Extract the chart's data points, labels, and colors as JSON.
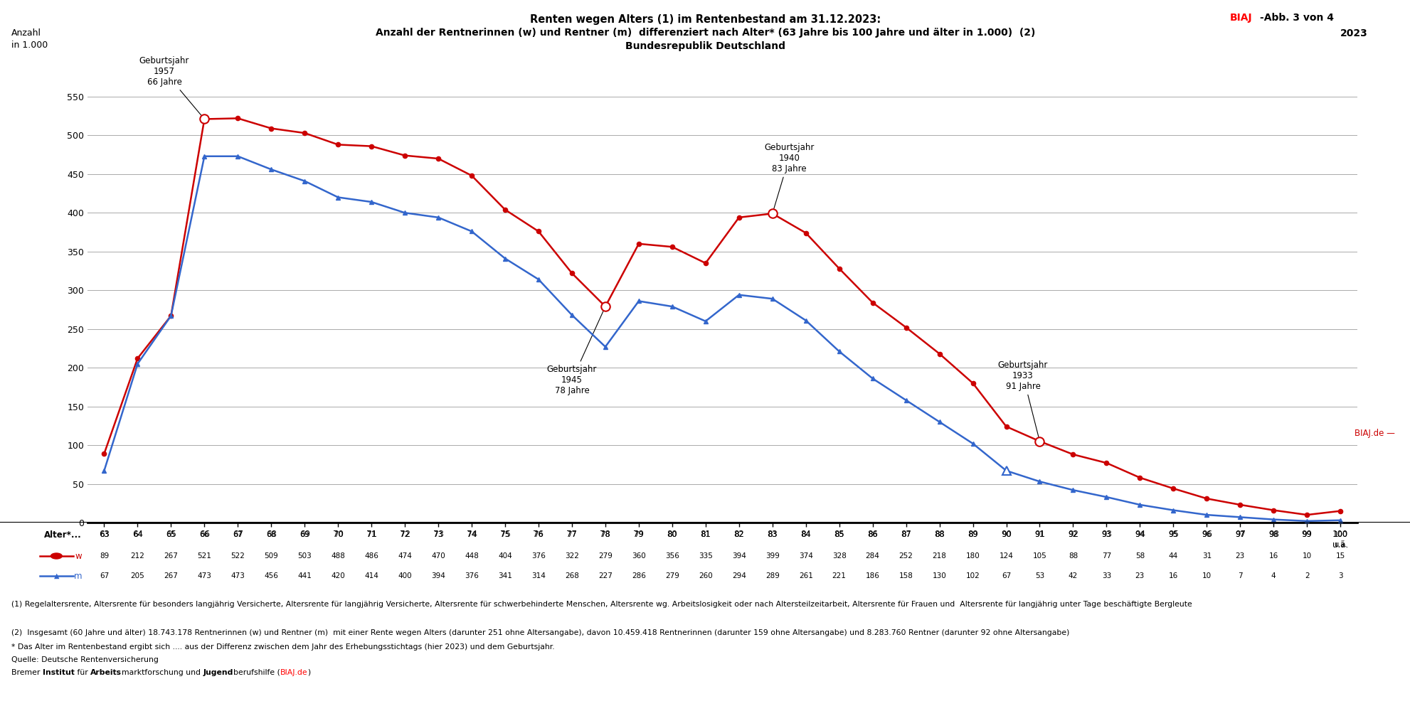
{
  "ages": [
    63,
    64,
    65,
    66,
    67,
    68,
    69,
    70,
    71,
    72,
    73,
    74,
    75,
    76,
    77,
    78,
    79,
    80,
    81,
    82,
    83,
    84,
    85,
    86,
    87,
    88,
    89,
    90,
    91,
    92,
    93,
    94,
    95,
    96,
    97,
    98,
    99,
    100
  ],
  "women": [
    89,
    212,
    267,
    521,
    522,
    509,
    503,
    488,
    486,
    474,
    470,
    448,
    404,
    376,
    322,
    279,
    360,
    356,
    335,
    394,
    399,
    374,
    328,
    284,
    252,
    218,
    180,
    124,
    105,
    88,
    77,
    58,
    44,
    31,
    23,
    16,
    10,
    15
  ],
  "men": [
    67,
    205,
    267,
    473,
    473,
    456,
    441,
    420,
    414,
    400,
    394,
    376,
    341,
    314,
    268,
    227,
    286,
    279,
    260,
    294,
    289,
    261,
    221,
    186,
    158,
    130,
    102,
    67,
    53,
    42,
    33,
    23,
    16,
    10,
    7,
    4,
    2,
    3
  ],
  "women_color": "#cc0000",
  "men_color": "#3366cc",
  "title_line1": "Renten wegen Alters (1) im Rentenbestand am 31.12.2023:",
  "title_line2": "Anzahl der Rentnerinnen (w) und Rentner (m)  differenziert nach Alter* (63 Jahre bis 100 Jahre und älter in 1.000)  (2)",
  "title_line3": "Bundesrepublik Deutschland",
  "year_label": "2023",
  "ylim": [
    0,
    560
  ],
  "yticks": [
    0,
    50,
    100,
    150,
    200,
    250,
    300,
    350,
    400,
    450,
    500,
    550
  ],
  "ann_1957_label": "Geburtsjahr\n1957\n66 Jahre",
  "ann_1957_age_idx": 3,
  "ann_1940_label": "Geburtsjahr\n1940\n83 Jahre",
  "ann_1940_age_idx": 20,
  "ann_1945_label": "Geburtsjahr\n1945\n78 Jahre",
  "ann_1945_age_idx": 15,
  "ann_1933_label": "Geburtsjahr\n1933\n91 Jahre",
  "ann_1933_age_idx": 28,
  "footnote1": "(1) Regelaltersrente, Altersrente für besonders langjährig Versicherte, Altersrente für langjährig Versicherte, Altersrente für schwerbehinderte Menschen, Altersrente wg. Arbeitslosigkeit oder nach Altersteilzeitarbeit, Altersrente für Frauen und  Altersrente für langjährig unter Tage beschäftigte Bergleute",
  "footnote2": "(2)  Insgesamt (60 Jahre und älter) 18.743.178 Rentnerinnen (w) und Rentner (m)  mit einer Rente wegen Alters (darunter 251 ohne Altersangabe), davon 10.459.418 Rentnerinnen (darunter 159 ohne Altersangabe) und 8.283.760 Rentner (darunter 92 ohne Altersangabe)",
  "footnote3": "* Das Alter im Rentenbestand ergibt sich .... aus der Differenz zwischen dem Jahr des Erhebungsstichtags (hier 2023) und dem Geburtsjahr.",
  "footnote4": "Quelle: Deutsche Rentenversicherung"
}
